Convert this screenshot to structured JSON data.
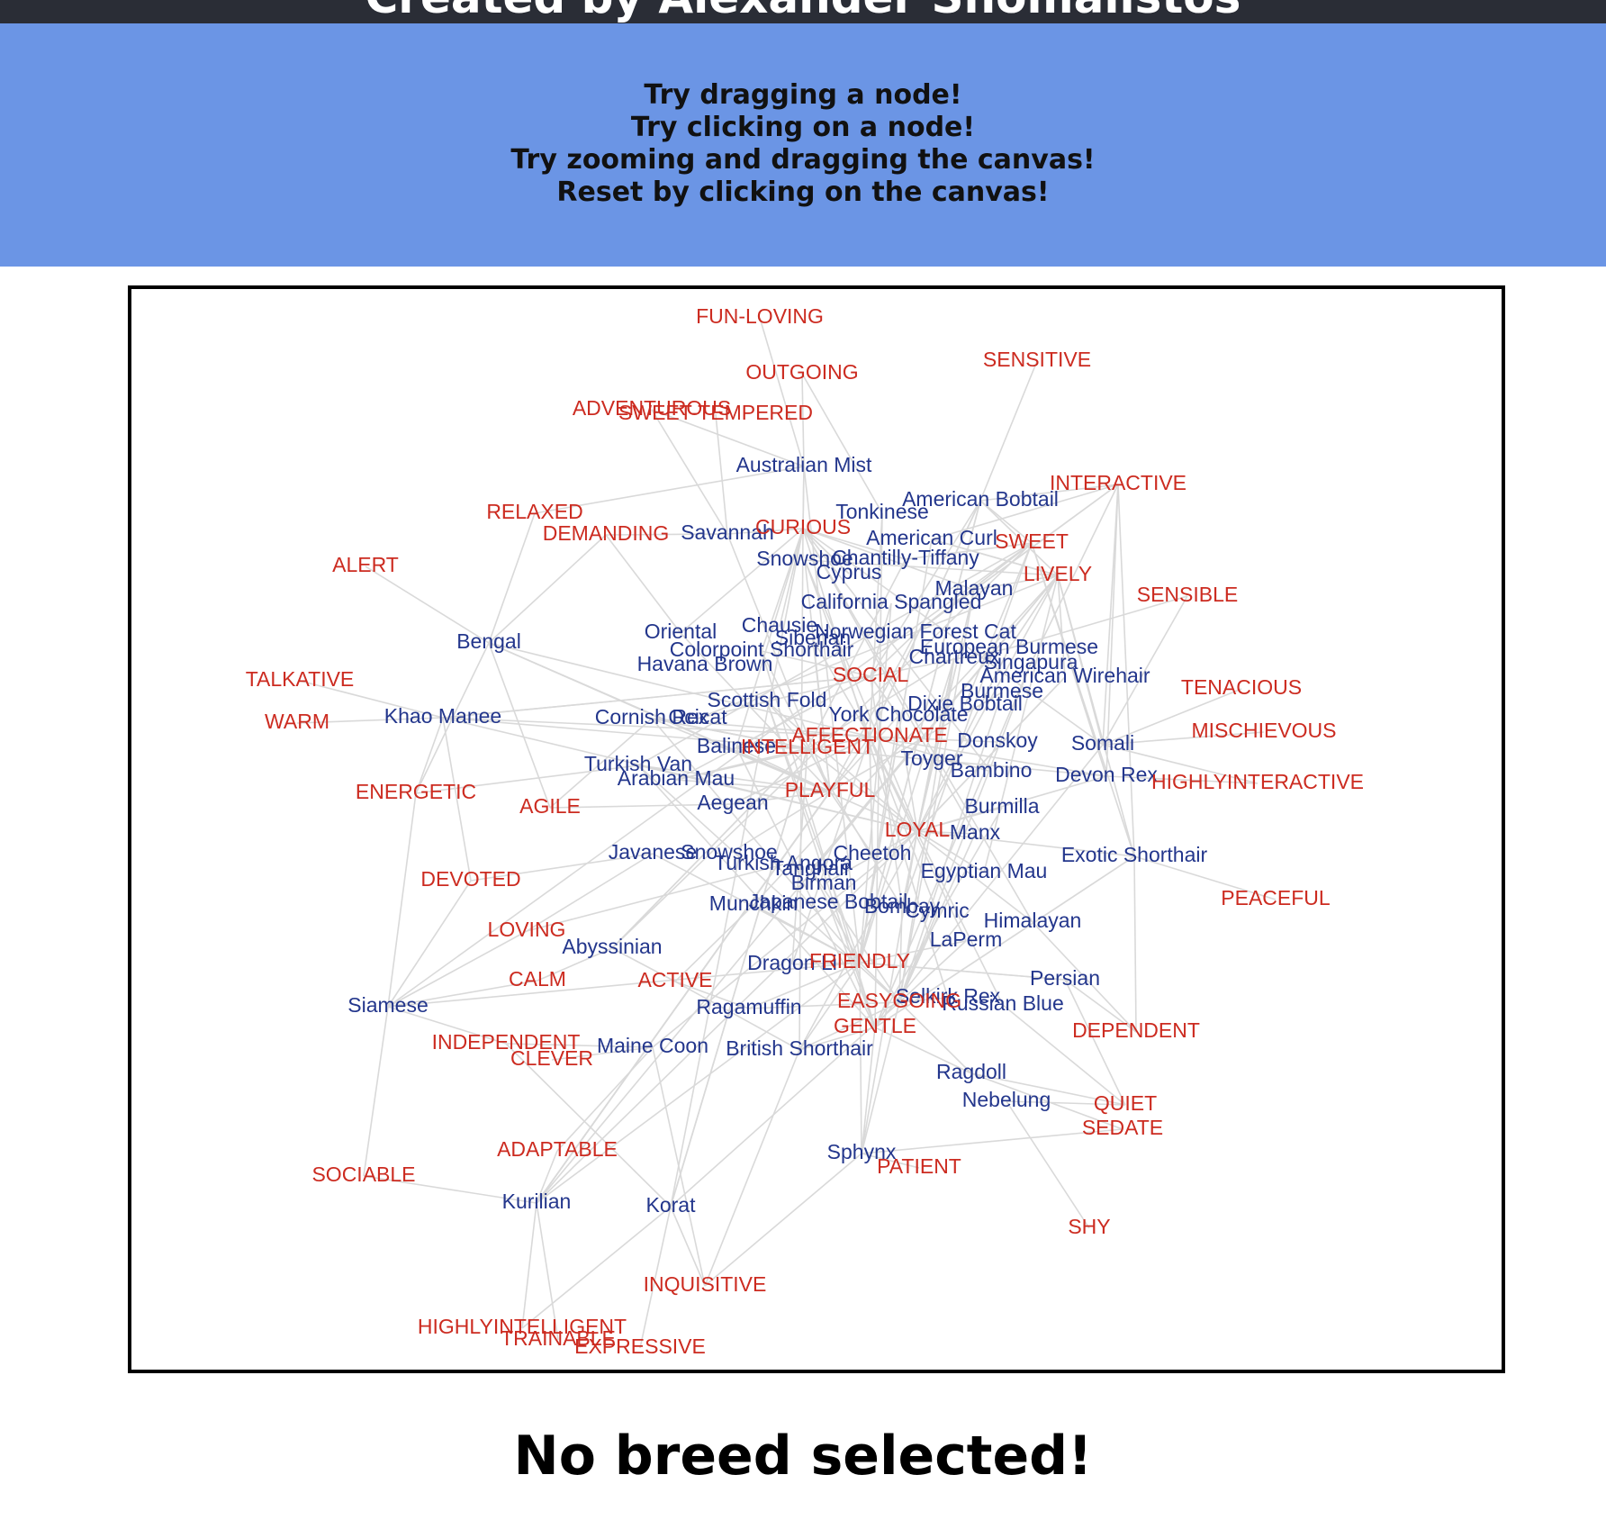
{
  "header": {
    "title": "Created by Alexander Shomalistos"
  },
  "banner": {
    "instructions": [
      "Try dragging a node!",
      "Try clicking on a node!",
      "Try zooming and dragging the canvas!",
      "Reset by clicking on the canvas!"
    ],
    "background": "#6b95e5"
  },
  "status": {
    "text": "No breed selected!"
  },
  "colors": {
    "breed": "#23368c",
    "trait": "#cc2b20",
    "edge": "#d9d9d9"
  },
  "graph": {
    "breeds": [
      "Australian Mist",
      "American Bobtail",
      "Tonkinese",
      "Savannah",
      "American Curl",
      "Snowshoe",
      "Chantilly-Tiffany",
      "Cyprus",
      "Malayan",
      "California Spangled",
      "Oriental",
      "Chausie",
      "Norwegian Forest Cat",
      "Siberian",
      "Colorpoint Shorthair",
      "European Burmese",
      "Chartreux",
      "Singapura",
      "Havana Brown",
      "American Wirehair",
      "Bengal",
      "Burmese",
      "Dixie Bobtail",
      "Scottish Fold",
      "Khao Manee",
      "Cornish Rex",
      "Ocicat",
      "York Chocolate",
      "Donskoy",
      "Somali",
      "Balinese",
      "Toyger",
      "Turkish Van",
      "Bambino",
      "Arabian Mau",
      "Devon Rex",
      "Aegean",
      "Burmilla",
      "Manx",
      "Javanese",
      "Snowshoe",
      "Cheetoh",
      "Exotic Shorthair",
      "Turkish Angora",
      "Tanghair",
      "Egyptian Mau",
      "Birman",
      "Munchkin",
      "Japanese Bobtail",
      "Bombay",
      "Cymric",
      "Himalayan",
      "LaPerm",
      "Abyssinian",
      "Dragon Li",
      "Persian",
      "Siamese",
      "Ragamuffin",
      "Selkirk Rex",
      "Russian Blue",
      "Maine Coon",
      "British Shorthair",
      "Ragdoll",
      "Nebelung",
      "Sphynx",
      "Kurilian",
      "Korat"
    ],
    "traits": [
      "FUN-LOVING",
      "OUTGOING",
      "SENSITIVE",
      "ADVENTUROUS",
      "SWEET-TEMPERED",
      "INTERACTIVE",
      "RELAXED",
      "CURIOUS",
      "DEMANDING",
      "SWEET",
      "ALERT",
      "LIVELY",
      "SENSIBLE",
      "SOCIAL",
      "TALKATIVE",
      "TENACIOUS",
      "WARM",
      "AFFECTIONATE",
      "MISCHIEVOUS",
      "INTELLIGENT",
      "HIGHLYINTERACTIVE",
      "ENERGETIC",
      "PLAYFUL",
      "AGILE",
      "LOYAL",
      "DEVOTED",
      "PEACEFUL",
      "LOVING",
      "FRIENDLY",
      "CALM",
      "ACTIVE",
      "EASYGOING",
      "DEPENDENT",
      "GENTLE",
      "INDEPENDENT",
      "CLEVER",
      "QUIET",
      "SEDATE",
      "ADAPTABLE",
      "SOCIABLE",
      "PATIENT",
      "SHY",
      "INQUISITIVE",
      "HIGHLYINTELLIGENT",
      "TRAINABLE",
      "EXPRESSIVE"
    ]
  }
}
